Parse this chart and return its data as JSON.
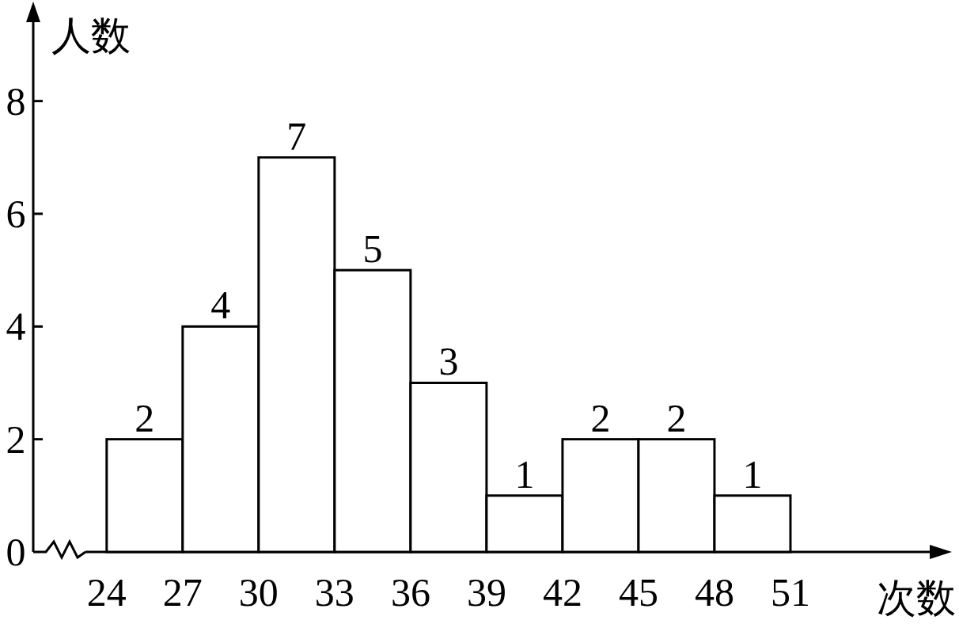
{
  "chart_data": {
    "type": "histogram",
    "xlabel": "次数",
    "ylabel": "人数",
    "bins": [
      24,
      27,
      30,
      33,
      36,
      39,
      42,
      45,
      48,
      51
    ],
    "values": [
      2,
      4,
      7,
      5,
      3,
      1,
      2,
      2,
      1
    ],
    "color": "#ffffff",
    "xlim": [
      21.1,
      56.5
    ],
    "ylim": [
      0,
      9.4
    ],
    "xticks": [
      24,
      27,
      30,
      33,
      36,
      39,
      42,
      45,
      48,
      51
    ],
    "yticks": [
      0,
      2,
      4,
      6,
      8
    ],
    "data_labels": true,
    "grid": false
  }
}
